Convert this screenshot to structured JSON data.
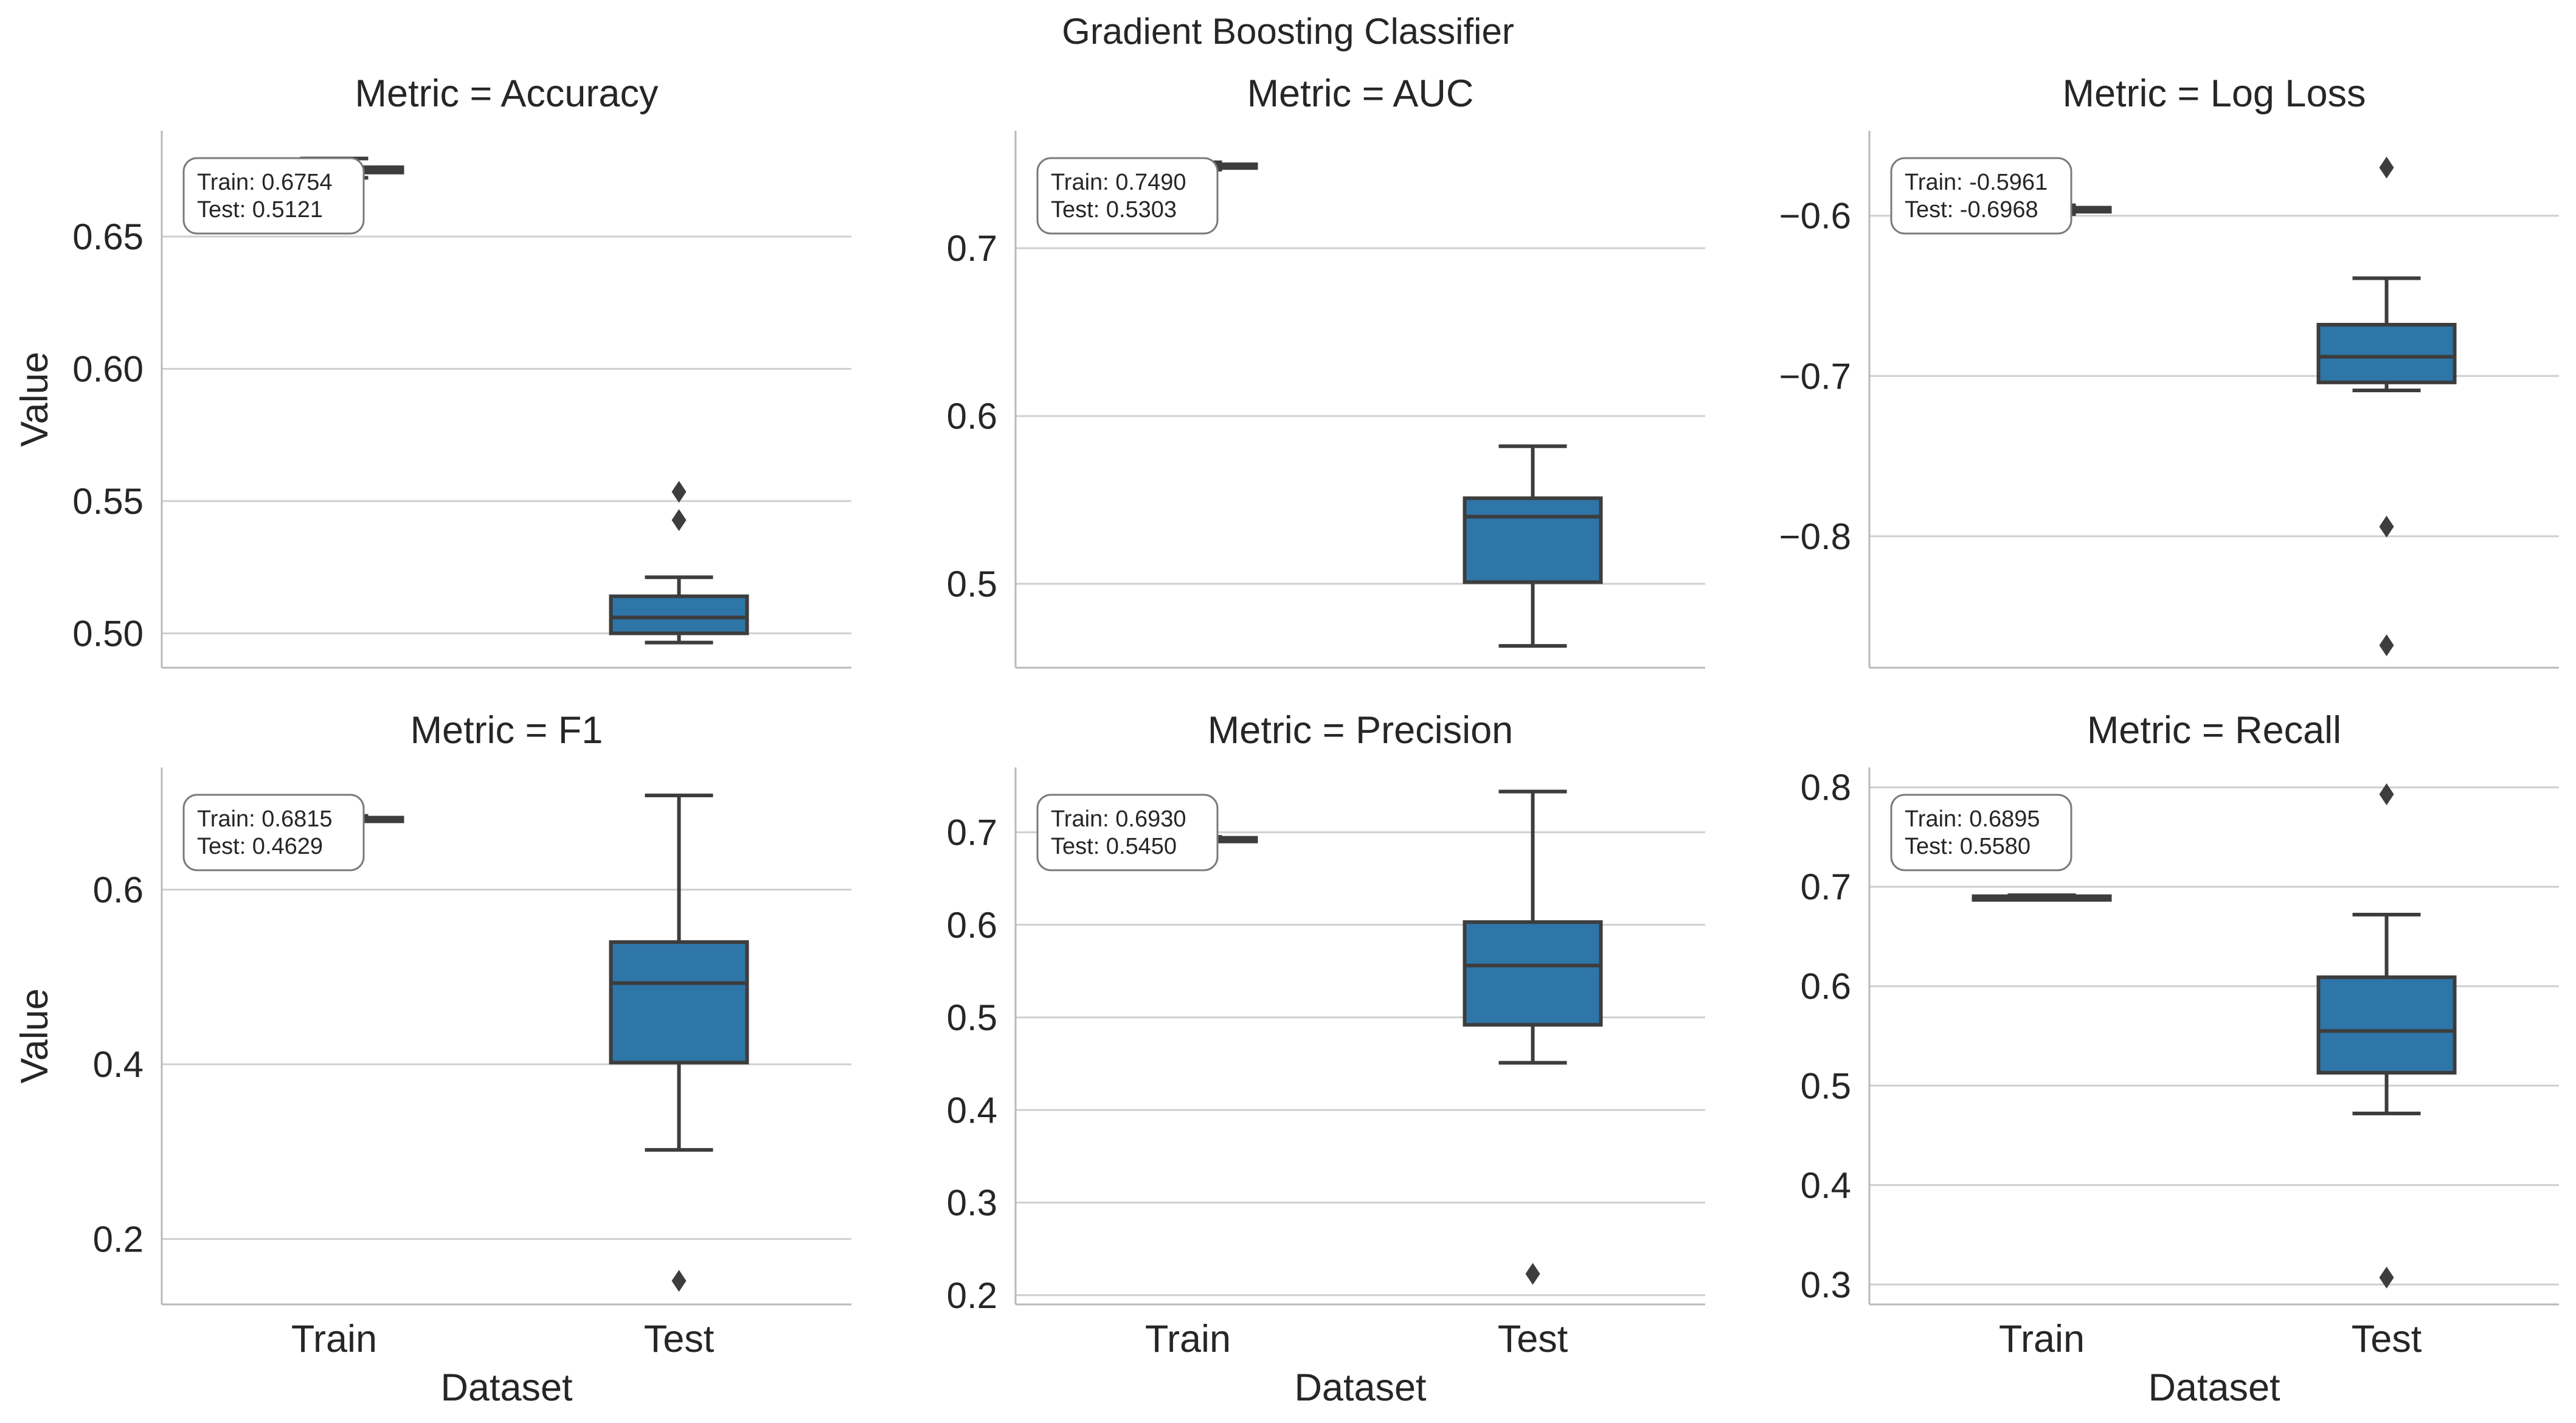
{
  "figure": {
    "title": "Gradient Boosting Classifier"
  },
  "colors": {
    "box_fill": "#2e75a8",
    "line": "#3d3d3d",
    "grid": "#cfcfcf",
    "spine": "#b9b9b9",
    "text": "#262626",
    "annotation_border": "#7a7a7a"
  },
  "chart_data": [
    {
      "type": "box",
      "title": "Metric = Accuracy",
      "xlabel": "",
      "ylabel": "Value",
      "categories": [
        "Train",
        "Test"
      ],
      "ylim": [
        0.487,
        0.69
      ],
      "yticks": [
        0.5,
        0.55,
        0.6,
        0.65
      ],
      "ytick_labels": [
        "0.50",
        "0.55",
        "0.60",
        "0.65"
      ],
      "boxes": [
        {
          "category": "Train",
          "whislo": 0.6722,
          "q1": 0.6742,
          "med": 0.6752,
          "q3": 0.6762,
          "whishi": 0.6795,
          "fliers": []
        },
        {
          "category": "Test",
          "whislo": 0.4965,
          "q1": 0.5,
          "med": 0.506,
          "q3": 0.514,
          "whishi": 0.5212,
          "fliers": [
            0.5428,
            0.5535
          ]
        }
      ],
      "annotation": [
        "Train:  0.6754",
        "Test:   0.5121"
      ]
    },
    {
      "type": "box",
      "title": "Metric = AUC",
      "xlabel": "",
      "ylabel": "",
      "categories": [
        "Train",
        "Test"
      ],
      "ylim": [
        0.45,
        0.77
      ],
      "yticks": [
        0.5,
        0.6,
        0.7
      ],
      "ytick_labels": [
        "0.5",
        "0.6",
        "0.7"
      ],
      "boxes": [
        {
          "category": "Train",
          "whislo": 0.7468,
          "q1": 0.7478,
          "med": 0.7488,
          "q3": 0.75,
          "whishi": 0.7512,
          "fliers": []
        },
        {
          "category": "Test",
          "whislo": 0.463,
          "q1": 0.501,
          "med": 0.54,
          "q3": 0.551,
          "whishi": 0.582,
          "fliers": []
        }
      ],
      "annotation": [
        "Train:  0.7490",
        "Test:   0.5303"
      ]
    },
    {
      "type": "box",
      "title": "Metric = Log Loss",
      "xlabel": "",
      "ylabel": "",
      "categories": [
        "Train",
        "Test"
      ],
      "ylim": [
        -0.882,
        -0.547
      ],
      "yticks": [
        -0.8,
        -0.7,
        -0.6
      ],
      "ytick_labels": [
        "−0.8",
        "−0.7",
        "−0.6"
      ],
      "boxes": [
        {
          "category": "Train",
          "whislo": -0.599,
          "q1": -0.5975,
          "med": -0.5962,
          "q3": -0.595,
          "whishi": -0.5935,
          "fliers": []
        },
        {
          "category": "Test",
          "whislo": -0.709,
          "q1": -0.704,
          "med": -0.688,
          "q3": -0.668,
          "whishi": -0.639,
          "fliers": [
            -0.57,
            -0.794,
            -0.868
          ]
        }
      ],
      "annotation": [
        "Train: -0.5961",
        "Test:  -0.6968"
      ]
    },
    {
      "type": "box",
      "title": "Metric = F1",
      "xlabel": "Dataset",
      "ylabel": "Value",
      "categories": [
        "Train",
        "Test"
      ],
      "ylim": [
        0.125,
        0.74
      ],
      "yticks": [
        0.2,
        0.4,
        0.6
      ],
      "ytick_labels": [
        "0.2",
        "0.4",
        "0.6"
      ],
      "boxes": [
        {
          "category": "Train",
          "whislo": 0.679,
          "q1": 0.6805,
          "med": 0.6815,
          "q3": 0.6825,
          "whishi": 0.6845,
          "fliers": []
        },
        {
          "category": "Test",
          "whislo": 0.302,
          "q1": 0.402,
          "med": 0.493,
          "q3": 0.54,
          "whishi": 0.708,
          "fliers": [
            0.152
          ]
        }
      ],
      "annotation": [
        "Train:  0.6815",
        "Test:   0.4629"
      ]
    },
    {
      "type": "box",
      "title": "Metric = Precision",
      "xlabel": "Dataset",
      "ylabel": "",
      "categories": [
        "Train",
        "Test"
      ],
      "ylim": [
        0.19,
        0.77
      ],
      "yticks": [
        0.2,
        0.3,
        0.4,
        0.5,
        0.6,
        0.7
      ],
      "ytick_labels": [
        "0.2",
        "0.3",
        "0.4",
        "0.5",
        "0.6",
        "0.7"
      ],
      "boxes": [
        {
          "category": "Train",
          "whislo": 0.691,
          "q1": 0.692,
          "med": 0.693,
          "q3": 0.694,
          "whishi": 0.695,
          "fliers": [
            0.699
          ]
        },
        {
          "category": "Test",
          "whislo": 0.451,
          "q1": 0.492,
          "med": 0.556,
          "q3": 0.603,
          "whishi": 0.744,
          "fliers": [
            0.223
          ]
        }
      ],
      "annotation": [
        "Train:  0.6930",
        "Test:   0.5450"
      ]
    },
    {
      "type": "box",
      "title": "Metric = Recall",
      "xlabel": "Dataset",
      "ylabel": "",
      "categories": [
        "Train",
        "Test"
      ],
      "ylim": [
        0.28,
        0.82
      ],
      "yticks": [
        0.3,
        0.4,
        0.5,
        0.6,
        0.7,
        0.8
      ],
      "ytick_labels": [
        "0.3",
        "0.4",
        "0.5",
        "0.6",
        "0.7",
        "0.8"
      ],
      "boxes": [
        {
          "category": "Train",
          "whislo": 0.6875,
          "q1": 0.6885,
          "med": 0.6895,
          "q3": 0.6905,
          "whishi": 0.6915,
          "fliers": []
        },
        {
          "category": "Test",
          "whislo": 0.472,
          "q1": 0.513,
          "med": 0.555,
          "q3": 0.609,
          "whishi": 0.672,
          "fliers": [
            0.793,
            0.307
          ]
        }
      ],
      "annotation": [
        "Train:  0.6895",
        "Test:   0.5580"
      ]
    }
  ]
}
